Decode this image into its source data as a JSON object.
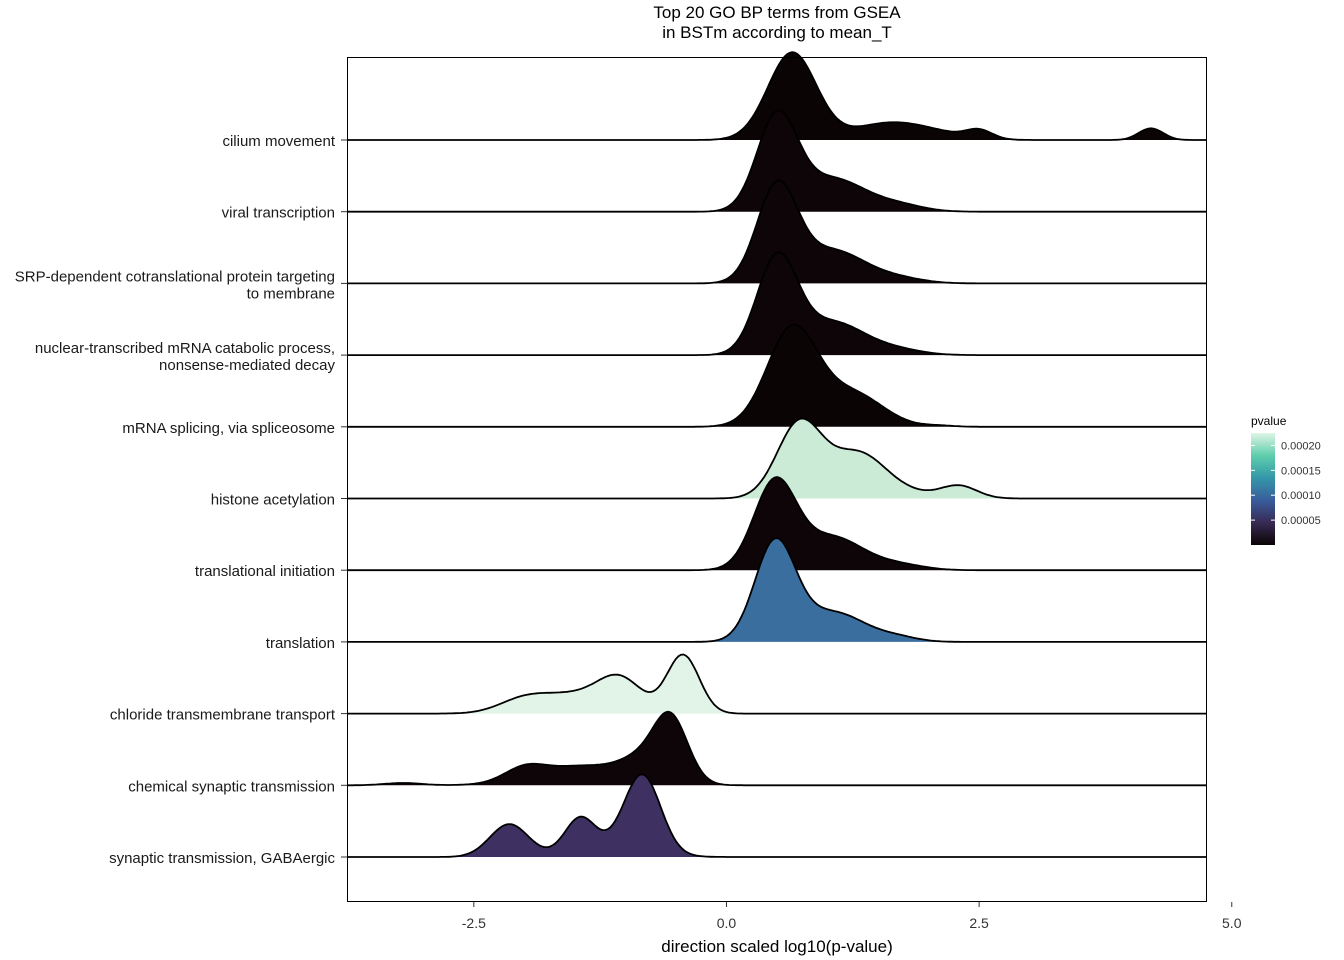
{
  "chart_data": {
    "type": "ridgeline",
    "title_line1": "Top 20 GO BP terms from GSEA",
    "title_line2": "in BSTm according to mean_T",
    "xlabel": "direction scaled log10(p-value)",
    "xlim": [
      -3.75,
      4.75
    ],
    "xticks": [
      {
        "value": -2.5,
        "label": "-2.5"
      },
      {
        "value": 0.0,
        "label": "0.0"
      },
      {
        "value": 2.5,
        "label": "2.5"
      },
      {
        "value": 5.0,
        "label": "5.0"
      }
    ],
    "legend": {
      "title": "pvalue",
      "position": "right",
      "ticks": [
        {
          "value": 0.0002,
          "label": "0.00020"
        },
        {
          "value": 0.00015,
          "label": "0.00015"
        },
        {
          "value": 0.0001,
          "label": "0.00010"
        },
        {
          "value": 5e-05,
          "label": "0.00005"
        }
      ],
      "min": 0.0,
      "max": 0.000225,
      "colors": [
        "#0b0405",
        "#382a54",
        "#395d9c",
        "#3497a9",
        "#60ceac",
        "#def5e5"
      ]
    },
    "series": [
      {
        "name": "synaptic transmission, GABAergic",
        "label_line1": "synaptic transmission, GABAergic",
        "label_line2": "",
        "pvalue": 3.5e-05,
        "color": "#3e3161",
        "bumps": [
          [
            -2.15,
            0.19,
            0.42
          ],
          [
            -1.45,
            0.15,
            0.43
          ],
          [
            -0.83,
            0.18,
            0.98
          ],
          [
            -1.15,
            0.35,
            0.12
          ]
        ]
      },
      {
        "name": "chemical synaptic transmission",
        "label_line1": "chemical synaptic transmission",
        "label_line2": "",
        "pvalue": 2e-06,
        "color": "#0d0507",
        "bumps": [
          [
            -3.2,
            0.18,
            0.03
          ],
          [
            -2.0,
            0.2,
            0.16
          ],
          [
            -1.4,
            0.45,
            0.25
          ],
          [
            -0.85,
            0.2,
            0.22
          ],
          [
            -0.55,
            0.17,
            0.82
          ]
        ]
      },
      {
        "name": "chloride transmembrane transport",
        "label_line1": "chloride transmembrane transport",
        "label_line2": "",
        "pvalue": 0.00022,
        "color": "#e2f4e8",
        "bumps": [
          [
            -2.0,
            0.25,
            0.18
          ],
          [
            -1.5,
            0.3,
            0.22
          ],
          [
            -1.05,
            0.22,
            0.42
          ],
          [
            -0.43,
            0.16,
            0.75
          ]
        ]
      },
      {
        "name": "translation",
        "label_line1": "translation",
        "label_line2": "",
        "pvalue": 0.00012,
        "color": "#3a6e9f",
        "bumps": [
          [
            0.48,
            0.2,
            1.25
          ],
          [
            1.05,
            0.32,
            0.38
          ],
          [
            1.7,
            0.2,
            0.05
          ]
        ]
      },
      {
        "name": "translational initiation",
        "label_line1": "translational initiation",
        "label_line2": "",
        "pvalue": 3e-06,
        "color": "#0d0507",
        "bumps": [
          [
            0.48,
            0.21,
            1.12
          ],
          [
            1.05,
            0.3,
            0.42
          ],
          [
            1.7,
            0.25,
            0.07
          ]
        ]
      },
      {
        "name": "histone acetylation",
        "label_line1": "histone acetylation",
        "label_line2": "",
        "pvalue": 0.00021,
        "color": "#cbebd6",
        "bumps": [
          [
            0.72,
            0.22,
            0.95
          ],
          [
            1.3,
            0.28,
            0.58
          ],
          [
            2.3,
            0.18,
            0.16
          ],
          [
            1.85,
            0.25,
            0.05
          ]
        ]
      },
      {
        "name": "mRNA splicing, via spliceosome",
        "label_line1": "mRNA splicing, via spliceosome",
        "label_line2": "",
        "pvalue": 1e-06,
        "color": "#0b0405",
        "bumps": [
          [
            0.65,
            0.25,
            1.25
          ],
          [
            1.25,
            0.3,
            0.42
          ],
          [
            2.1,
            0.15,
            0.015
          ]
        ]
      },
      {
        "name": "nuclear-transcribed mRNA catabolic process, nonsense-mediated decay",
        "label_line1": "nuclear-transcribed mRNA catabolic process,",
        "label_line2": "nonsense-mediated decay",
        "pvalue": 2e-06,
        "color": "#0d0507",
        "bumps": [
          [
            0.5,
            0.2,
            1.22
          ],
          [
            1.05,
            0.32,
            0.42
          ],
          [
            1.7,
            0.25,
            0.06
          ]
        ]
      },
      {
        "name": "SRP-dependent cotranslational protein targeting to membrane",
        "label_line1": "SRP-dependent cotranslational protein targeting",
        "label_line2": "to membrane",
        "pvalue": 2e-06,
        "color": "#0d0507",
        "bumps": [
          [
            0.5,
            0.2,
            1.22
          ],
          [
            1.05,
            0.32,
            0.42
          ],
          [
            1.7,
            0.25,
            0.06
          ]
        ]
      },
      {
        "name": "viral transcription",
        "label_line1": "viral transcription",
        "label_line2": "",
        "pvalue": 2e-06,
        "color": "#0d0507",
        "bumps": [
          [
            0.5,
            0.2,
            1.2
          ],
          [
            1.05,
            0.32,
            0.42
          ],
          [
            1.7,
            0.25,
            0.08
          ]
        ]
      },
      {
        "name": "cilium movement",
        "label_line1": "cilium movement",
        "label_line2": "",
        "pvalue": 1e-06,
        "color": "#0b0405",
        "bumps": [
          [
            0.65,
            0.24,
            1.12
          ],
          [
            1.6,
            0.35,
            0.21
          ],
          [
            2.5,
            0.13,
            0.11
          ],
          [
            4.2,
            0.12,
            0.15
          ],
          [
            2.1,
            0.3,
            0.06
          ]
        ]
      }
    ]
  }
}
